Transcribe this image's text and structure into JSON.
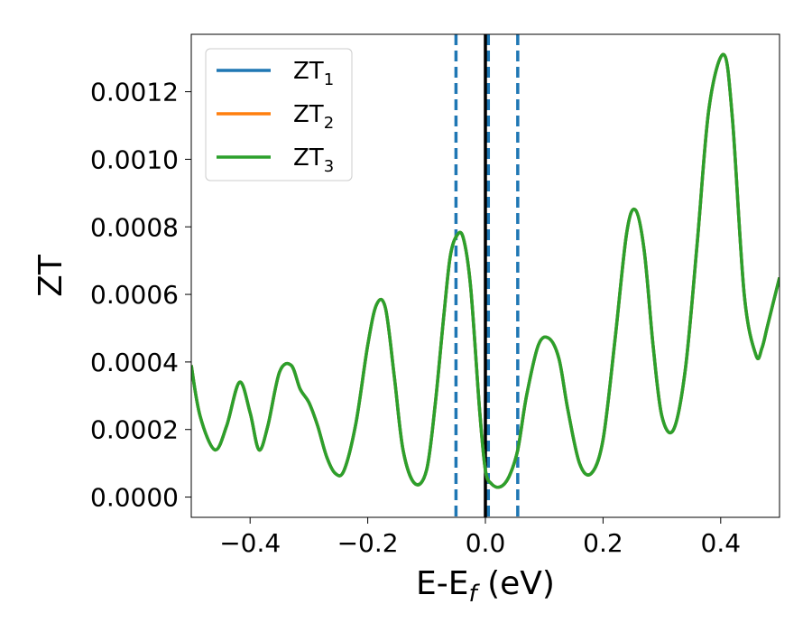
{
  "chart_data": {
    "type": "line",
    "xlabel": {
      "main": "E-E",
      "sub": "f",
      "unit": " (eV)"
    },
    "ylabel": "ZT",
    "xlim": [
      -0.5,
      0.5
    ],
    "ylim": [
      -6e-05,
      0.00137
    ],
    "xticks": [
      -0.4,
      -0.2,
      0.0,
      0.2,
      0.4
    ],
    "xtick_labels": [
      "−0.4",
      "−0.2",
      "0.0",
      "0.2",
      "0.4"
    ],
    "yticks": [
      0.0,
      0.0002,
      0.0004,
      0.0006,
      0.0008,
      0.001,
      0.0012
    ],
    "ytick_labels": [
      "0.0000",
      "0.0002",
      "0.0004",
      "0.0006",
      "0.0008",
      "0.0010",
      "0.0012"
    ],
    "legend": {
      "placement": "upper-left",
      "entries": [
        {
          "base": "ZT",
          "sub": "1",
          "color": "#1f77b4"
        },
        {
          "base": "ZT",
          "sub": "2",
          "color": "#ff7f0e"
        },
        {
          "base": "ZT",
          "sub": "3",
          "color": "#2ca02c"
        }
      ]
    },
    "vlines": [
      {
        "x": -0.05,
        "style": "dashed",
        "color": "#1f77b4"
      },
      {
        "x": 0.005,
        "style": "dashed",
        "color": "#1f77b4"
      },
      {
        "x": 0.055,
        "style": "dashed",
        "color": "#1f77b4"
      },
      {
        "x": 0.0,
        "style": "solid",
        "color": "#000000"
      }
    ],
    "x": [
      -0.5,
      -0.485,
      -0.46,
      -0.44,
      -0.418,
      -0.4,
      -0.385,
      -0.37,
      -0.35,
      -0.33,
      -0.315,
      -0.3,
      -0.285,
      -0.27,
      -0.255,
      -0.24,
      -0.22,
      -0.2,
      -0.185,
      -0.17,
      -0.155,
      -0.14,
      -0.12,
      -0.1,
      -0.085,
      -0.07,
      -0.06,
      -0.05,
      -0.038,
      -0.025,
      -0.01,
      0.0,
      0.01,
      0.025,
      0.04,
      0.055,
      0.07,
      0.09,
      0.108,
      0.125,
      0.14,
      0.16,
      0.18,
      0.2,
      0.22,
      0.24,
      0.255,
      0.27,
      0.285,
      0.3,
      0.32,
      0.34,
      0.36,
      0.38,
      0.405,
      0.42,
      0.44,
      0.46,
      0.47,
      0.48,
      0.5
    ],
    "series": [
      {
        "name": "ZT1",
        "values": [
          0.00039,
          0.00024,
          0.00014,
          0.00021,
          0.00034,
          0.00025,
          0.00014,
          0.00021,
          0.00037,
          0.00039,
          0.00032,
          0.00028,
          0.00021,
          0.00012,
          7e-05,
          8e-05,
          0.00022,
          0.00045,
          0.00057,
          0.00056,
          0.00036,
          0.00014,
          4e-05,
          8e-05,
          0.00028,
          0.00055,
          0.00071,
          0.00077,
          0.00077,
          0.00062,
          0.00026,
          8e-05,
          4e-05,
          3e-05,
          6e-05,
          0.00014,
          0.0003,
          0.00045,
          0.00047,
          0.00041,
          0.00026,
          0.0001,
          7e-05,
          0.00017,
          0.00046,
          0.00078,
          0.00085,
          0.00073,
          0.00045,
          0.00024,
          0.0002,
          0.00038,
          0.00075,
          0.00115,
          0.00131,
          0.00112,
          0.0006,
          0.00042,
          0.00044,
          0.00051,
          0.00065
        ]
      },
      {
        "name": "ZT2",
        "values": [
          0.00039,
          0.00024,
          0.00014,
          0.00021,
          0.00034,
          0.00025,
          0.00014,
          0.00021,
          0.00037,
          0.00039,
          0.00032,
          0.00028,
          0.00021,
          0.00012,
          7e-05,
          8e-05,
          0.00022,
          0.00045,
          0.00057,
          0.00056,
          0.00036,
          0.00014,
          4e-05,
          8e-05,
          0.00028,
          0.00055,
          0.00071,
          0.00077,
          0.00077,
          0.00062,
          0.00026,
          8e-05,
          4e-05,
          3e-05,
          6e-05,
          0.00014,
          0.0003,
          0.00045,
          0.00047,
          0.00041,
          0.00026,
          0.0001,
          7e-05,
          0.00017,
          0.00046,
          0.00078,
          0.00085,
          0.00073,
          0.00045,
          0.00024,
          0.0002,
          0.00038,
          0.00075,
          0.00115,
          0.00131,
          0.00112,
          0.0006,
          0.00042,
          0.00044,
          0.00051,
          0.00065
        ]
      },
      {
        "name": "ZT3",
        "values": [
          0.00039,
          0.00024,
          0.00014,
          0.00021,
          0.00034,
          0.00025,
          0.00014,
          0.00021,
          0.00037,
          0.00039,
          0.00032,
          0.00028,
          0.00021,
          0.00012,
          7e-05,
          8e-05,
          0.00022,
          0.00045,
          0.00057,
          0.00056,
          0.00036,
          0.00014,
          4e-05,
          8e-05,
          0.00028,
          0.00055,
          0.00071,
          0.00077,
          0.00077,
          0.00062,
          0.00026,
          8e-05,
          4e-05,
          3e-05,
          6e-05,
          0.00014,
          0.0003,
          0.00045,
          0.00047,
          0.00041,
          0.00026,
          0.0001,
          7e-05,
          0.00017,
          0.00046,
          0.00078,
          0.00085,
          0.00073,
          0.00045,
          0.00024,
          0.0002,
          0.00038,
          0.00075,
          0.00115,
          0.00131,
          0.00112,
          0.0006,
          0.00042,
          0.00044,
          0.00051,
          0.00065
        ]
      }
    ],
    "grid": false
  }
}
